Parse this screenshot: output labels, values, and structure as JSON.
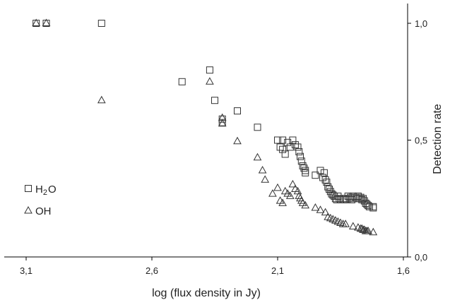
{
  "chart_data": {
    "type": "scatter",
    "title": "",
    "xlabel": "log (flux density in Jy)",
    "ylabel": "Detection rate",
    "x_reversed": true,
    "xlim": [
      3.1,
      1.6
    ],
    "ylim": [
      0.0,
      1.0
    ],
    "x_ticks": [
      "3,1",
      "2,6",
      "2,1",
      "1,6"
    ],
    "y_ticks": [
      "0,0",
      "0,5",
      "1,0"
    ],
    "x_tick_values": [
      3.1,
      2.6,
      2.1,
      1.6
    ],
    "y_tick_values": [
      0.0,
      0.5,
      1.0
    ],
    "grid": false,
    "legend_position": "bottom-left",
    "series": [
      {
        "name": "H₂O",
        "marker": "square",
        "points": [
          [
            3.06,
            1.0
          ],
          [
            3.02,
            1.0
          ],
          [
            2.8,
            1.0
          ],
          [
            2.48,
            0.75
          ],
          [
            2.37,
            0.8
          ],
          [
            2.35,
            0.67
          ],
          [
            2.32,
            0.575
          ],
          [
            2.32,
            0.59
          ],
          [
            2.26,
            0.625
          ],
          [
            2.18,
            0.555
          ],
          [
            2.1,
            0.5
          ],
          [
            2.09,
            0.47
          ],
          [
            2.08,
            0.5
          ],
          [
            2.08,
            0.46
          ],
          [
            2.07,
            0.44
          ],
          [
            2.06,
            0.49
          ],
          [
            2.05,
            0.47
          ],
          [
            2.04,
            0.5
          ],
          [
            2.03,
            0.48
          ],
          [
            2.02,
            0.47
          ],
          [
            2.015,
            0.45
          ],
          [
            2.01,
            0.43
          ],
          [
            2.005,
            0.41
          ],
          [
            2.0,
            0.39
          ],
          [
            1.995,
            0.38
          ],
          [
            1.99,
            0.37
          ],
          [
            1.99,
            0.36
          ],
          [
            1.95,
            0.35
          ],
          [
            1.93,
            0.37
          ],
          [
            1.92,
            0.34
          ],
          [
            1.915,
            0.36
          ],
          [
            1.91,
            0.33
          ],
          [
            1.905,
            0.32
          ],
          [
            1.9,
            0.3
          ],
          [
            1.895,
            0.29
          ],
          [
            1.89,
            0.28
          ],
          [
            1.885,
            0.27
          ],
          [
            1.88,
            0.265
          ],
          [
            1.875,
            0.26
          ],
          [
            1.87,
            0.25
          ],
          [
            1.865,
            0.245
          ],
          [
            1.86,
            0.26
          ],
          [
            1.855,
            0.25
          ],
          [
            1.85,
            0.245
          ],
          [
            1.84,
            0.25
          ],
          [
            1.835,
            0.245
          ],
          [
            1.83,
            0.25
          ],
          [
            1.825,
            0.245
          ],
          [
            1.82,
            0.26
          ],
          [
            1.815,
            0.25
          ],
          [
            1.81,
            0.255
          ],
          [
            1.805,
            0.245
          ],
          [
            1.8,
            0.26
          ],
          [
            1.79,
            0.255
          ],
          [
            1.785,
            0.25
          ],
          [
            1.78,
            0.26
          ],
          [
            1.775,
            0.25
          ],
          [
            1.77,
            0.255
          ],
          [
            1.765,
            0.245
          ],
          [
            1.76,
            0.25
          ],
          [
            1.755,
            0.24
          ],
          [
            1.75,
            0.23
          ],
          [
            1.745,
            0.225
          ],
          [
            1.74,
            0.22
          ],
          [
            1.735,
            0.215
          ],
          [
            1.72,
            0.215
          ],
          [
            1.72,
            0.21
          ]
        ]
      },
      {
        "name": "OH",
        "marker": "triangle",
        "points": [
          [
            3.06,
            1.0
          ],
          [
            3.02,
            1.0
          ],
          [
            2.8,
            0.67
          ],
          [
            2.37,
            0.75
          ],
          [
            2.32,
            0.595
          ],
          [
            2.32,
            0.57
          ],
          [
            2.26,
            0.495
          ],
          [
            2.18,
            0.425
          ],
          [
            2.16,
            0.37
          ],
          [
            2.15,
            0.33
          ],
          [
            2.12,
            0.27
          ],
          [
            2.1,
            0.295
          ],
          [
            2.09,
            0.24
          ],
          [
            2.08,
            0.23
          ],
          [
            2.07,
            0.28
          ],
          [
            2.06,
            0.27
          ],
          [
            2.05,
            0.26
          ],
          [
            2.04,
            0.31
          ],
          [
            2.03,
            0.29
          ],
          [
            2.02,
            0.28
          ],
          [
            2.015,
            0.26
          ],
          [
            2.01,
            0.25
          ],
          [
            2.005,
            0.24
          ],
          [
            2.0,
            0.23
          ],
          [
            1.99,
            0.22
          ],
          [
            1.95,
            0.21
          ],
          [
            1.93,
            0.2
          ],
          [
            1.91,
            0.19
          ],
          [
            1.9,
            0.17
          ],
          [
            1.89,
            0.165
          ],
          [
            1.88,
            0.16
          ],
          [
            1.87,
            0.155
          ],
          [
            1.86,
            0.15
          ],
          [
            1.85,
            0.145
          ],
          [
            1.84,
            0.14
          ],
          [
            1.83,
            0.14
          ],
          [
            1.8,
            0.13
          ],
          [
            1.78,
            0.125
          ],
          [
            1.77,
            0.12
          ],
          [
            1.765,
            0.12
          ],
          [
            1.76,
            0.115
          ],
          [
            1.755,
            0.115
          ],
          [
            1.75,
            0.11
          ],
          [
            1.745,
            0.11
          ],
          [
            1.74,
            0.11
          ],
          [
            1.72,
            0.105
          ]
        ]
      }
    ]
  },
  "legend": [
    {
      "label_main": "H",
      "label_sub": "2",
      "label_tail": "O",
      "marker": "square"
    },
    {
      "label_main": "OH",
      "label_sub": "",
      "label_tail": "",
      "marker": "triangle"
    }
  ]
}
